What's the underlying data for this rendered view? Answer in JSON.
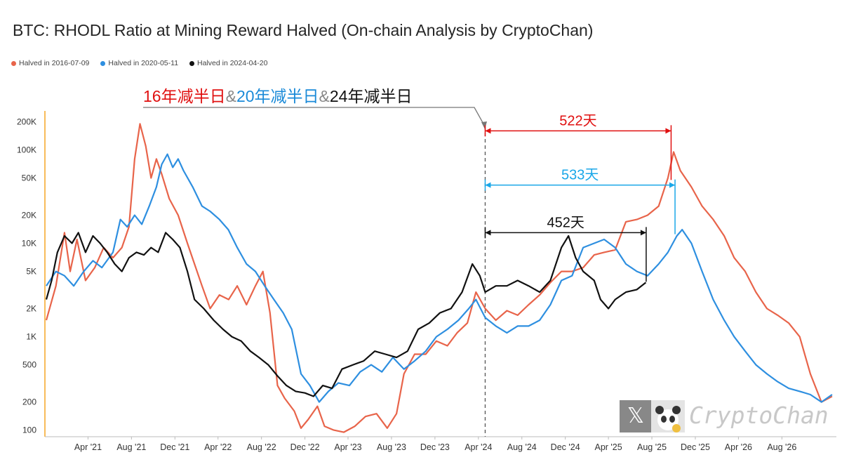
{
  "chart_data": {
    "type": "line",
    "title": "BTC: RHODL Ratio at Mining Reward Halved (On-chain Analysis by CryptoChan)",
    "y_scale": "log",
    "ylim": [
      85,
      300000
    ],
    "y_ticks": [
      100,
      200,
      500,
      1000,
      2000,
      5000,
      10000,
      20000,
      50000,
      100000,
      200000
    ],
    "y_tick_labels": [
      "100",
      "200",
      "500",
      "1K",
      "2K",
      "5K",
      "10K",
      "20K",
      "50K",
      "100K",
      "200K"
    ],
    "x_ticks": [
      {
        "date": "2021-04-01",
        "label": "Apr '21"
      },
      {
        "date": "2021-08-01",
        "label": "Aug '21"
      },
      {
        "date": "2021-12-01",
        "label": "Dec '21"
      },
      {
        "date": "2022-04-01",
        "label": "Apr '22"
      },
      {
        "date": "2022-08-01",
        "label": "Aug '22"
      },
      {
        "date": "2022-12-01",
        "label": "Dec '22"
      },
      {
        "date": "2023-04-01",
        "label": "Apr '23"
      },
      {
        "date": "2023-08-01",
        "label": "Aug '23"
      },
      {
        "date": "2023-12-01",
        "label": "Dec '23"
      },
      {
        "date": "2024-04-01",
        "label": "Apr '24"
      },
      {
        "date": "2024-08-01",
        "label": "Aug '24"
      },
      {
        "date": "2024-12-01",
        "label": "Dec '24"
      },
      {
        "date": "2025-04-01",
        "label": "Apr '25"
      },
      {
        "date": "2025-08-01",
        "label": "Aug '25"
      },
      {
        "date": "2025-12-01",
        "label": "Dec '25"
      },
      {
        "date": "2026-04-01",
        "label": "Apr '26"
      },
      {
        "date": "2026-08-01",
        "label": "Aug '26"
      }
    ],
    "xlim": [
      "2020-12-01",
      "2027-01-01"
    ],
    "grid": false,
    "legend_position": "top-left",
    "series": [
      {
        "name": "Halved in 2016-07-09",
        "color": "#e8644a",
        "points": [
          [
            "2020-12-05",
            1500
          ],
          [
            "2021-01-01",
            3500
          ],
          [
            "2021-01-25",
            13000
          ],
          [
            "2021-02-10",
            5000
          ],
          [
            "2021-03-01",
            11000
          ],
          [
            "2021-03-25",
            4000
          ],
          [
            "2021-04-20",
            5500
          ],
          [
            "2021-05-15",
            9000
          ],
          [
            "2021-06-10",
            7000
          ],
          [
            "2021-07-05",
            9000
          ],
          [
            "2021-07-25",
            15000
          ],
          [
            "2021-08-10",
            80000
          ],
          [
            "2021-08-25",
            190000
          ],
          [
            "2021-09-10",
            110000
          ],
          [
            "2021-09-25",
            50000
          ],
          [
            "2021-10-10",
            80000
          ],
          [
            "2021-10-25",
            55000
          ],
          [
            "2021-11-15",
            30000
          ],
          [
            "2021-12-10",
            20000
          ],
          [
            "2022-01-05",
            10000
          ],
          [
            "2022-01-25",
            6000
          ],
          [
            "2022-02-15",
            3500
          ],
          [
            "2022-03-10",
            2000
          ],
          [
            "2022-04-05",
            2800
          ],
          [
            "2022-05-01",
            2500
          ],
          [
            "2022-05-25",
            3500
          ],
          [
            "2022-06-20",
            2200
          ],
          [
            "2022-07-15",
            3500
          ],
          [
            "2022-08-05",
            5000
          ],
          [
            "2022-08-25",
            1800
          ],
          [
            "2022-09-15",
            300
          ],
          [
            "2022-10-05",
            220
          ],
          [
            "2022-11-01",
            160
          ],
          [
            "2022-11-20",
            105
          ],
          [
            "2022-12-10",
            130
          ],
          [
            "2023-01-05",
            180
          ],
          [
            "2023-01-25",
            110
          ],
          [
            "2023-02-20",
            100
          ],
          [
            "2023-03-20",
            95
          ],
          [
            "2023-04-20",
            110
          ],
          [
            "2023-05-20",
            140
          ],
          [
            "2023-06-20",
            150
          ],
          [
            "2023-07-20",
            105
          ],
          [
            "2023-08-15",
            150
          ],
          [
            "2023-09-05",
            400
          ],
          [
            "2023-10-05",
            650
          ],
          [
            "2023-11-05",
            650
          ],
          [
            "2023-12-05",
            900
          ],
          [
            "2024-01-05",
            800
          ],
          [
            "2024-02-01",
            1100
          ],
          [
            "2024-03-01",
            1400
          ],
          [
            "2024-03-25",
            3000
          ],
          [
            "2024-04-20",
            2000
          ],
          [
            "2024-05-20",
            1500
          ],
          [
            "2024-06-20",
            1900
          ],
          [
            "2024-07-20",
            1700
          ],
          [
            "2024-08-20",
            2200
          ],
          [
            "2024-09-20",
            2800
          ],
          [
            "2024-10-20",
            3800
          ],
          [
            "2024-11-20",
            5000
          ],
          [
            "2024-12-20",
            5000
          ],
          [
            "2025-01-20",
            5500
          ],
          [
            "2025-02-20",
            7500
          ],
          [
            "2025-03-20",
            8000
          ],
          [
            "2025-04-20",
            8500
          ],
          [
            "2025-05-20",
            17000
          ],
          [
            "2025-06-20",
            18000
          ],
          [
            "2025-07-20",
            20000
          ],
          [
            "2025-08-20",
            25000
          ],
          [
            "2025-09-15",
            50000
          ],
          [
            "2025-10-01",
            95000
          ],
          [
            "2025-10-20",
            60000
          ],
          [
            "2025-11-20",
            40000
          ],
          [
            "2025-12-20",
            25000
          ],
          [
            "2026-01-20",
            18000
          ],
          [
            "2026-02-20",
            12000
          ],
          [
            "2026-03-20",
            7000
          ],
          [
            "2026-04-20",
            5000
          ],
          [
            "2026-05-20",
            3000
          ],
          [
            "2026-06-20",
            2000
          ],
          [
            "2026-07-20",
            1700
          ],
          [
            "2026-08-20",
            1400
          ],
          [
            "2026-09-20",
            1000
          ],
          [
            "2026-10-20",
            400
          ],
          [
            "2026-11-20",
            200
          ],
          [
            "2026-12-20",
            230
          ]
        ]
      },
      {
        "name": "Halved in 2020-05-11",
        "color": "#2e8fe0",
        "points": [
          [
            "2020-12-05",
            3500
          ],
          [
            "2021-01-01",
            5000
          ],
          [
            "2021-01-25",
            4500
          ],
          [
            "2021-02-20",
            3500
          ],
          [
            "2021-03-20",
            5000
          ],
          [
            "2021-04-15",
            6500
          ],
          [
            "2021-05-10",
            5500
          ],
          [
            "2021-06-10",
            8000
          ],
          [
            "2021-07-01",
            18000
          ],
          [
            "2021-07-20",
            15000
          ],
          [
            "2021-08-10",
            20000
          ],
          [
            "2021-08-30",
            16000
          ],
          [
            "2021-09-20",
            25000
          ],
          [
            "2021-10-10",
            40000
          ],
          [
            "2021-10-25",
            70000
          ],
          [
            "2021-11-10",
            90000
          ],
          [
            "2021-11-25",
            65000
          ],
          [
            "2021-12-10",
            80000
          ],
          [
            "2021-12-25",
            60000
          ],
          [
            "2022-01-20",
            40000
          ],
          [
            "2022-02-15",
            25000
          ],
          [
            "2022-03-10",
            22000
          ],
          [
            "2022-04-05",
            18000
          ],
          [
            "2022-04-30",
            14000
          ],
          [
            "2022-05-25",
            9000
          ],
          [
            "2022-06-20",
            6000
          ],
          [
            "2022-07-15",
            5000
          ],
          [
            "2022-08-10",
            3500
          ],
          [
            "2022-09-05",
            2500
          ],
          [
            "2022-10-01",
            1800
          ],
          [
            "2022-10-25",
            1200
          ],
          [
            "2022-11-20",
            400
          ],
          [
            "2022-12-15",
            300
          ],
          [
            "2023-01-10",
            200
          ],
          [
            "2023-02-05",
            260
          ],
          [
            "2023-03-05",
            320
          ],
          [
            "2023-04-05",
            300
          ],
          [
            "2023-05-05",
            420
          ],
          [
            "2023-06-05",
            500
          ],
          [
            "2023-07-05",
            420
          ],
          [
            "2023-08-05",
            600
          ],
          [
            "2023-09-05",
            450
          ],
          [
            "2023-10-05",
            550
          ],
          [
            "2023-11-05",
            700
          ],
          [
            "2023-12-05",
            1000
          ],
          [
            "2024-01-05",
            1200
          ],
          [
            "2024-02-05",
            1500
          ],
          [
            "2024-03-05",
            2000
          ],
          [
            "2024-03-25",
            2500
          ],
          [
            "2024-04-20",
            1600
          ],
          [
            "2024-05-20",
            1300
          ],
          [
            "2024-06-20",
            1100
          ],
          [
            "2024-07-20",
            1300
          ],
          [
            "2024-08-20",
            1300
          ],
          [
            "2024-09-20",
            1500
          ],
          [
            "2024-10-20",
            2200
          ],
          [
            "2024-11-20",
            4000
          ],
          [
            "2024-12-20",
            4500
          ],
          [
            "2025-01-20",
            9000
          ],
          [
            "2025-02-20",
            10000
          ],
          [
            "2025-03-20",
            11000
          ],
          [
            "2025-04-20",
            9000
          ],
          [
            "2025-05-20",
            6000
          ],
          [
            "2025-06-20",
            5000
          ],
          [
            "2025-07-20",
            4500
          ],
          [
            "2025-08-20",
            6000
          ],
          [
            "2025-09-15",
            8000
          ],
          [
            "2025-10-10",
            12000
          ],
          [
            "2025-10-25",
            14000
          ],
          [
            "2025-11-20",
            10000
          ],
          [
            "2025-12-20",
            5000
          ],
          [
            "2026-01-20",
            2500
          ],
          [
            "2026-02-20",
            1500
          ],
          [
            "2026-03-20",
            1000
          ],
          [
            "2026-04-20",
            700
          ],
          [
            "2026-05-20",
            500
          ],
          [
            "2026-06-20",
            400
          ],
          [
            "2026-07-20",
            330
          ],
          [
            "2026-08-20",
            280
          ],
          [
            "2026-09-20",
            260
          ],
          [
            "2026-10-20",
            240
          ],
          [
            "2026-11-20",
            200
          ],
          [
            "2026-12-20",
            240
          ]
        ]
      },
      {
        "name": "Halved in 2024-04-20",
        "color": "#111111",
        "points": [
          [
            "2020-12-05",
            2500
          ],
          [
            "2020-12-20",
            4000
          ],
          [
            "2021-01-05",
            8000
          ],
          [
            "2021-01-25",
            12000
          ],
          [
            "2021-02-15",
            10000
          ],
          [
            "2021-03-05",
            13000
          ],
          [
            "2021-03-25",
            8000
          ],
          [
            "2021-04-15",
            12000
          ],
          [
            "2021-05-05",
            10000
          ],
          [
            "2021-05-25",
            8000
          ],
          [
            "2021-06-15",
            6000
          ],
          [
            "2021-07-05",
            5000
          ],
          [
            "2021-07-25",
            7000
          ],
          [
            "2021-08-15",
            8000
          ],
          [
            "2021-09-05",
            7500
          ],
          [
            "2021-09-25",
            9000
          ],
          [
            "2021-10-15",
            8000
          ],
          [
            "2021-11-05",
            13000
          ],
          [
            "2021-11-25",
            11000
          ],
          [
            "2021-12-15",
            9000
          ],
          [
            "2022-01-05",
            5000
          ],
          [
            "2022-01-25",
            2500
          ],
          [
            "2022-02-20",
            2000
          ],
          [
            "2022-03-20",
            1500
          ],
          [
            "2022-04-15",
            1200
          ],
          [
            "2022-05-10",
            1000
          ],
          [
            "2022-06-05",
            900
          ],
          [
            "2022-07-01",
            700
          ],
          [
            "2022-07-25",
            600
          ],
          [
            "2022-08-20",
            500
          ],
          [
            "2022-09-15",
            380
          ],
          [
            "2022-10-10",
            300
          ],
          [
            "2022-11-05",
            260
          ],
          [
            "2022-12-01",
            250
          ],
          [
            "2022-12-25",
            230
          ],
          [
            "2023-01-20",
            300
          ],
          [
            "2023-02-15",
            280
          ],
          [
            "2023-03-15",
            450
          ],
          [
            "2023-04-15",
            500
          ],
          [
            "2023-05-15",
            550
          ],
          [
            "2023-06-15",
            700
          ],
          [
            "2023-07-15",
            650
          ],
          [
            "2023-08-15",
            600
          ],
          [
            "2023-09-15",
            700
          ],
          [
            "2023-10-15",
            1200
          ],
          [
            "2023-11-15",
            1400
          ],
          [
            "2023-12-15",
            1800
          ],
          [
            "2024-01-15",
            2000
          ],
          [
            "2024-02-15",
            3000
          ],
          [
            "2024-03-15",
            6000
          ],
          [
            "2024-04-05",
            4500
          ],
          [
            "2024-04-20",
            3000
          ],
          [
            "2024-05-20",
            3500
          ],
          [
            "2024-06-20",
            3500
          ],
          [
            "2024-07-20",
            4000
          ],
          [
            "2024-08-20",
            3500
          ],
          [
            "2024-09-20",
            3000
          ],
          [
            "2024-10-20",
            4000
          ],
          [
            "2024-11-20",
            9000
          ],
          [
            "2024-12-10",
            12000
          ],
          [
            "2024-12-30",
            7000
          ],
          [
            "2025-01-20",
            5000
          ],
          [
            "2025-02-20",
            4000
          ],
          [
            "2025-03-10",
            2500
          ],
          [
            "2025-04-01",
            2000
          ],
          [
            "2025-04-20",
            2500
          ],
          [
            "2025-05-20",
            3000
          ],
          [
            "2025-06-20",
            3200
          ],
          [
            "2025-07-15",
            3800
          ]
        ]
      }
    ],
    "halving_marker_date": "2024-04-20",
    "annotation_title": {
      "part1": "16年减半日",
      "amp1": "&",
      "part2": "20年减半日",
      "amp2": "&",
      "part3": "24年减半日"
    },
    "spans": [
      {
        "label": "522天",
        "color": "#e01010",
        "start": "2024-04-20",
        "end": "2025-09-24",
        "y": 160000
      },
      {
        "label": "533天",
        "color": "#1aa7e8",
        "start": "2024-04-20",
        "end": "2025-10-05",
        "y": 42000
      },
      {
        "label": "452天",
        "color": "#111111",
        "start": "2024-04-20",
        "end": "2025-07-16",
        "y": 13000
      }
    ]
  },
  "watermark": {
    "text": "CryptoChan",
    "logo_glyph": "𝕏"
  }
}
